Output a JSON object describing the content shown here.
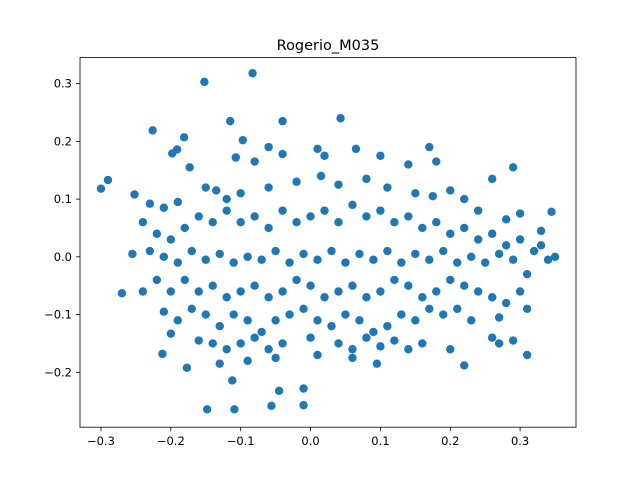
{
  "chart_data": {
    "type": "scatter",
    "title": "Rogerio_M035",
    "xlabel": "",
    "ylabel": "",
    "xlim": [
      -0.33,
      0.38
    ],
    "ylim": [
      -0.295,
      0.345
    ],
    "xticks": [
      -0.3,
      -0.2,
      -0.1,
      0.0,
      0.1,
      0.2,
      0.3
    ],
    "yticks": [
      -0.2,
      -0.1,
      0.0,
      0.1,
      0.2,
      0.3
    ],
    "xtick_labels": [
      "−0.3",
      "−0.2",
      "−0.1",
      "0.0",
      "0.1",
      "0.2",
      "0.3"
    ],
    "ytick_labels": [
      "−0.2",
      "−0.1",
      "0.0",
      "0.1",
      "0.2",
      "0.3"
    ],
    "grid": false,
    "legend": "none",
    "marker_color": "#1f77b4",
    "series": [
      {
        "points": [
          [
            -0.083,
            0.318
          ],
          [
            -0.152,
            0.303
          ],
          [
            0.043,
            0.24
          ],
          [
            -0.115,
            0.235
          ],
          [
            -0.04,
            0.235
          ],
          [
            -0.226,
            0.219
          ],
          [
            -0.181,
            0.207
          ],
          [
            -0.097,
            0.202
          ],
          [
            -0.191,
            0.186
          ],
          [
            -0.198,
            0.179
          ],
          [
            -0.06,
            0.19
          ],
          [
            -0.04,
            0.178
          ],
          [
            0.01,
            0.187
          ],
          [
            0.065,
            0.187
          ],
          [
            0.17,
            0.19
          ],
          [
            -0.107,
            0.172
          ],
          [
            -0.08,
            0.165
          ],
          [
            -0.173,
            0.155
          ],
          [
            0.02,
            0.175
          ],
          [
            0.1,
            0.175
          ],
          [
            0.14,
            0.16
          ],
          [
            0.18,
            0.165
          ],
          [
            0.29,
            0.155
          ],
          [
            0.26,
            0.135
          ],
          [
            -0.29,
            0.133
          ],
          [
            -0.3,
            0.118
          ],
          [
            -0.252,
            0.108
          ],
          [
            -0.23,
            0.092
          ],
          [
            -0.21,
            0.085
          ],
          [
            -0.19,
            0.095
          ],
          [
            -0.15,
            0.12
          ],
          [
            -0.135,
            0.115
          ],
          [
            -0.12,
            0.1
          ],
          [
            -0.1,
            0.11
          ],
          [
            -0.06,
            0.12
          ],
          [
            -0.02,
            0.13
          ],
          [
            0.015,
            0.14
          ],
          [
            0.04,
            0.125
          ],
          [
            0.08,
            0.135
          ],
          [
            0.11,
            0.12
          ],
          [
            0.15,
            0.11
          ],
          [
            0.175,
            0.105
          ],
          [
            0.2,
            0.115
          ],
          [
            0.22,
            0.1
          ],
          [
            0.24,
            0.08
          ],
          [
            0.28,
            0.065
          ],
          [
            0.3,
            0.075
          ],
          [
            0.345,
            0.078
          ],
          [
            0.33,
            0.045
          ],
          [
            0.33,
            0.02
          ],
          [
            -0.24,
            0.06
          ],
          [
            -0.22,
            0.04
          ],
          [
            -0.2,
            0.03
          ],
          [
            -0.18,
            0.05
          ],
          [
            -0.16,
            0.07
          ],
          [
            -0.14,
            0.06
          ],
          [
            -0.12,
            0.08
          ],
          [
            -0.1,
            0.06
          ],
          [
            -0.08,
            0.07
          ],
          [
            -0.06,
            0.05
          ],
          [
            -0.04,
            0.08
          ],
          [
            -0.02,
            0.06
          ],
          [
            0.0,
            0.07
          ],
          [
            0.02,
            0.08
          ],
          [
            0.04,
            0.06
          ],
          [
            0.06,
            0.09
          ],
          [
            0.08,
            0.07
          ],
          [
            0.1,
            0.08
          ],
          [
            0.12,
            0.06
          ],
          [
            0.14,
            0.07
          ],
          [
            0.16,
            0.05
          ],
          [
            0.18,
            0.06
          ],
          [
            0.2,
            0.04
          ],
          [
            0.22,
            0.05
          ],
          [
            0.24,
            0.03
          ],
          [
            0.26,
            0.04
          ],
          [
            0.28,
            0.02
          ],
          [
            0.3,
            0.03
          ],
          [
            0.32,
            0.01
          ],
          [
            -0.255,
            0.005
          ],
          [
            -0.23,
            0.01
          ],
          [
            -0.21,
            0.0
          ],
          [
            -0.19,
            -0.01
          ],
          [
            -0.17,
            0.01
          ],
          [
            -0.15,
            -0.005
          ],
          [
            -0.13,
            0.005
          ],
          [
            -0.11,
            -0.01
          ],
          [
            -0.09,
            0.0
          ],
          [
            -0.07,
            -0.005
          ],
          [
            -0.05,
            0.01
          ],
          [
            -0.03,
            -0.01
          ],
          [
            -0.01,
            0.005
          ],
          [
            0.01,
            -0.005
          ],
          [
            0.03,
            0.01
          ],
          [
            0.05,
            -0.01
          ],
          [
            0.07,
            0.005
          ],
          [
            0.09,
            -0.005
          ],
          [
            0.11,
            0.01
          ],
          [
            0.13,
            -0.01
          ],
          [
            0.15,
            0.005
          ],
          [
            0.17,
            -0.005
          ],
          [
            0.19,
            0.01
          ],
          [
            0.21,
            -0.01
          ],
          [
            0.23,
            0.0
          ],
          [
            0.25,
            -0.01
          ],
          [
            0.27,
            0.005
          ],
          [
            0.29,
            -0.005
          ],
          [
            0.31,
            -0.03
          ],
          [
            0.35,
            0.0
          ],
          [
            0.34,
            -0.005
          ],
          [
            -0.27,
            -0.063
          ],
          [
            -0.24,
            -0.06
          ],
          [
            -0.22,
            -0.04
          ],
          [
            -0.2,
            -0.06
          ],
          [
            -0.18,
            -0.04
          ],
          [
            -0.16,
            -0.06
          ],
          [
            -0.14,
            -0.05
          ],
          [
            -0.12,
            -0.07
          ],
          [
            -0.1,
            -0.06
          ],
          [
            -0.08,
            -0.05
          ],
          [
            -0.06,
            -0.07
          ],
          [
            -0.04,
            -0.06
          ],
          [
            -0.02,
            -0.04
          ],
          [
            0.0,
            -0.05
          ],
          [
            0.02,
            -0.07
          ],
          [
            0.04,
            -0.06
          ],
          [
            0.06,
            -0.05
          ],
          [
            0.08,
            -0.07
          ],
          [
            0.1,
            -0.06
          ],
          [
            0.12,
            -0.04
          ],
          [
            0.14,
            -0.05
          ],
          [
            0.16,
            -0.07
          ],
          [
            0.18,
            -0.06
          ],
          [
            0.2,
            -0.04
          ],
          [
            0.22,
            -0.05
          ],
          [
            0.24,
            -0.06
          ],
          [
            0.26,
            -0.07
          ],
          [
            0.28,
            -0.08
          ],
          [
            0.3,
            -0.06
          ],
          [
            0.31,
            -0.09
          ],
          [
            -0.21,
            -0.095
          ],
          [
            -0.19,
            -0.11
          ],
          [
            -0.17,
            -0.09
          ],
          [
            -0.15,
            -0.1
          ],
          [
            -0.13,
            -0.12
          ],
          [
            -0.11,
            -0.1
          ],
          [
            -0.09,
            -0.11
          ],
          [
            -0.07,
            -0.13
          ],
          [
            -0.05,
            -0.11
          ],
          [
            -0.03,
            -0.1
          ],
          [
            -0.01,
            -0.09
          ],
          [
            0.01,
            -0.11
          ],
          [
            0.03,
            -0.12
          ],
          [
            0.05,
            -0.1
          ],
          [
            0.07,
            -0.11
          ],
          [
            0.09,
            -0.13
          ],
          [
            0.11,
            -0.12
          ],
          [
            0.13,
            -0.1
          ],
          [
            0.15,
            -0.11
          ],
          [
            0.17,
            -0.09
          ],
          [
            0.19,
            -0.1
          ],
          [
            0.21,
            -0.09
          ],
          [
            0.23,
            -0.11
          ],
          [
            0.27,
            -0.105
          ],
          [
            0.26,
            -0.14
          ],
          [
            0.29,
            -0.145
          ],
          [
            0.31,
            -0.17
          ],
          [
            -0.2,
            -0.133
          ],
          [
            -0.16,
            -0.145
          ],
          [
            -0.14,
            -0.15
          ],
          [
            -0.12,
            -0.16
          ],
          [
            -0.1,
            -0.15
          ],
          [
            -0.08,
            -0.14
          ],
          [
            -0.06,
            -0.16
          ],
          [
            -0.04,
            -0.15
          ],
          [
            0.0,
            -0.14
          ],
          [
            0.04,
            -0.15
          ],
          [
            0.06,
            -0.16
          ],
          [
            0.08,
            -0.14
          ],
          [
            0.1,
            -0.155
          ],
          [
            0.12,
            -0.145
          ],
          [
            0.14,
            -0.16
          ],
          [
            0.16,
            -0.15
          ],
          [
            0.2,
            -0.16
          ],
          [
            0.27,
            -0.15
          ],
          [
            -0.212,
            -0.168
          ],
          [
            -0.177,
            -0.192
          ],
          [
            -0.13,
            -0.185
          ],
          [
            -0.09,
            -0.18
          ],
          [
            -0.05,
            -0.175
          ],
          [
            0.01,
            -0.17
          ],
          [
            0.06,
            -0.175
          ],
          [
            0.095,
            -0.185
          ],
          [
            0.22,
            -0.188
          ],
          [
            -0.112,
            -0.214
          ],
          [
            -0.045,
            -0.232
          ],
          [
            -0.01,
            -0.228
          ],
          [
            -0.148,
            -0.264
          ],
          [
            -0.109,
            -0.264
          ],
          [
            -0.056,
            -0.258
          ],
          [
            -0.01,
            -0.257
          ]
        ]
      }
    ]
  }
}
